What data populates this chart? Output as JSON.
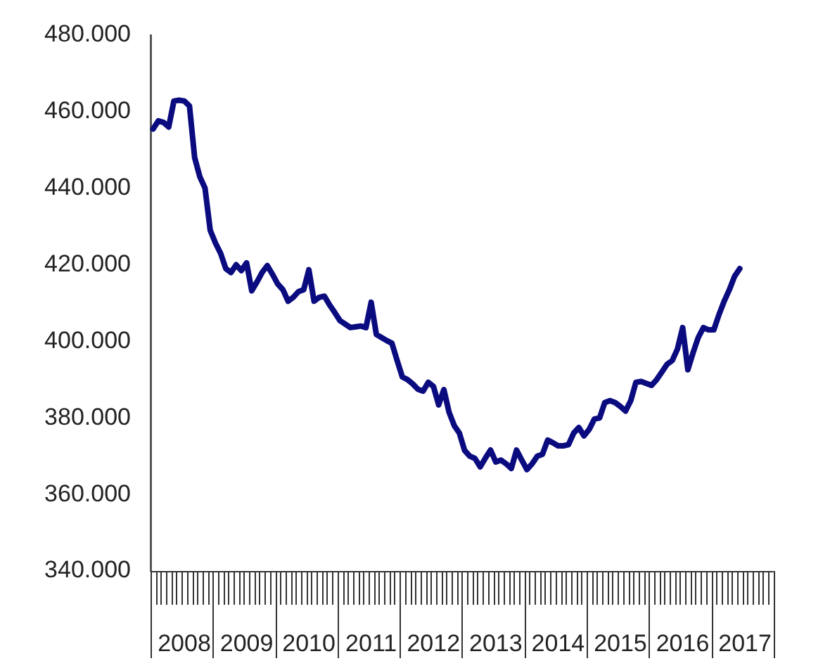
{
  "chart_data": {
    "type": "line",
    "categories": [
      null,
      null,
      null,
      null,
      null,
      null,
      "2008",
      null,
      null,
      null,
      null,
      null,
      null,
      null,
      null,
      null,
      null,
      null,
      "2009",
      null,
      null,
      null,
      null,
      null,
      null,
      null,
      null,
      null,
      null,
      null,
      "2010",
      null,
      null,
      null,
      null,
      null,
      null,
      null,
      null,
      null,
      null,
      null,
      "2011",
      null,
      null,
      null,
      null,
      null,
      null,
      null,
      null,
      null,
      null,
      null,
      "2012",
      null,
      null,
      null,
      null,
      null,
      null,
      null,
      null,
      null,
      null,
      null,
      "2013",
      null,
      null,
      null,
      null,
      null,
      null,
      null,
      null,
      null,
      null,
      null,
      "2014",
      null,
      null,
      null,
      null,
      null,
      null,
      null,
      null,
      null,
      null,
      null,
      "2015",
      null,
      null,
      null,
      null,
      null,
      null,
      null,
      null,
      null,
      null,
      null,
      "2016",
      null,
      null,
      null,
      null,
      null,
      null,
      null,
      null,
      null,
      null,
      null,
      "2017",
      null,
      null,
      null,
      null,
      null
    ],
    "values": [
      455.5,
      457.6,
      457.2,
      456,
      462.8,
      463,
      462.8,
      461.5,
      448,
      443,
      440,
      429,
      425.7,
      423,
      419,
      418,
      420,
      418.5,
      420.5,
      413.2,
      415.5,
      418,
      419.8,
      417.5,
      415,
      413.5,
      410.5,
      411.5,
      413,
      413.5,
      418.7,
      410.5,
      411.5,
      411.8,
      409.5,
      407.5,
      405.4,
      404.5,
      403.6,
      403.8,
      404,
      403.6,
      410.2,
      401.8,
      401,
      400.2,
      399.5,
      395,
      390.7,
      390,
      388.9,
      387.5,
      387,
      389.3,
      388.2,
      383.4,
      387.4,
      381.5,
      378,
      376,
      371.5,
      370,
      369.4,
      367.2,
      369.5,
      371.6,
      368.5,
      369,
      368,
      366.8,
      371.6,
      369,
      366.5,
      368,
      370,
      370.5,
      374.2,
      373.5,
      372.7,
      372.7,
      373,
      376,
      377.5,
      375.3,
      377,
      379.7,
      380,
      384,
      384.5,
      384,
      383,
      381.8,
      384.5,
      389.3,
      389.5,
      389,
      388.5,
      390,
      392,
      394,
      395,
      398,
      403.6,
      392.6,
      397,
      401,
      403.6,
      403,
      403,
      407,
      410.5,
      413.5,
      417,
      419,
      null,
      null,
      null,
      null,
      null,
      null
    ],
    "color": "#0b0b80",
    "marker": "none",
    "ylim": [
      340,
      480
    ],
    "yticks": [
      {
        "value": 340,
        "label": "340.000"
      },
      {
        "value": 360,
        "label": "360.000"
      },
      {
        "value": 380,
        "label": "380.000"
      },
      {
        "value": 400,
        "label": "400.000"
      },
      {
        "value": 420,
        "label": "420.000"
      },
      {
        "value": 440,
        "label": "440.000"
      },
      {
        "value": 460,
        "label": "460.000"
      },
      {
        "value": 480,
        "label": "480.000"
      }
    ]
  }
}
